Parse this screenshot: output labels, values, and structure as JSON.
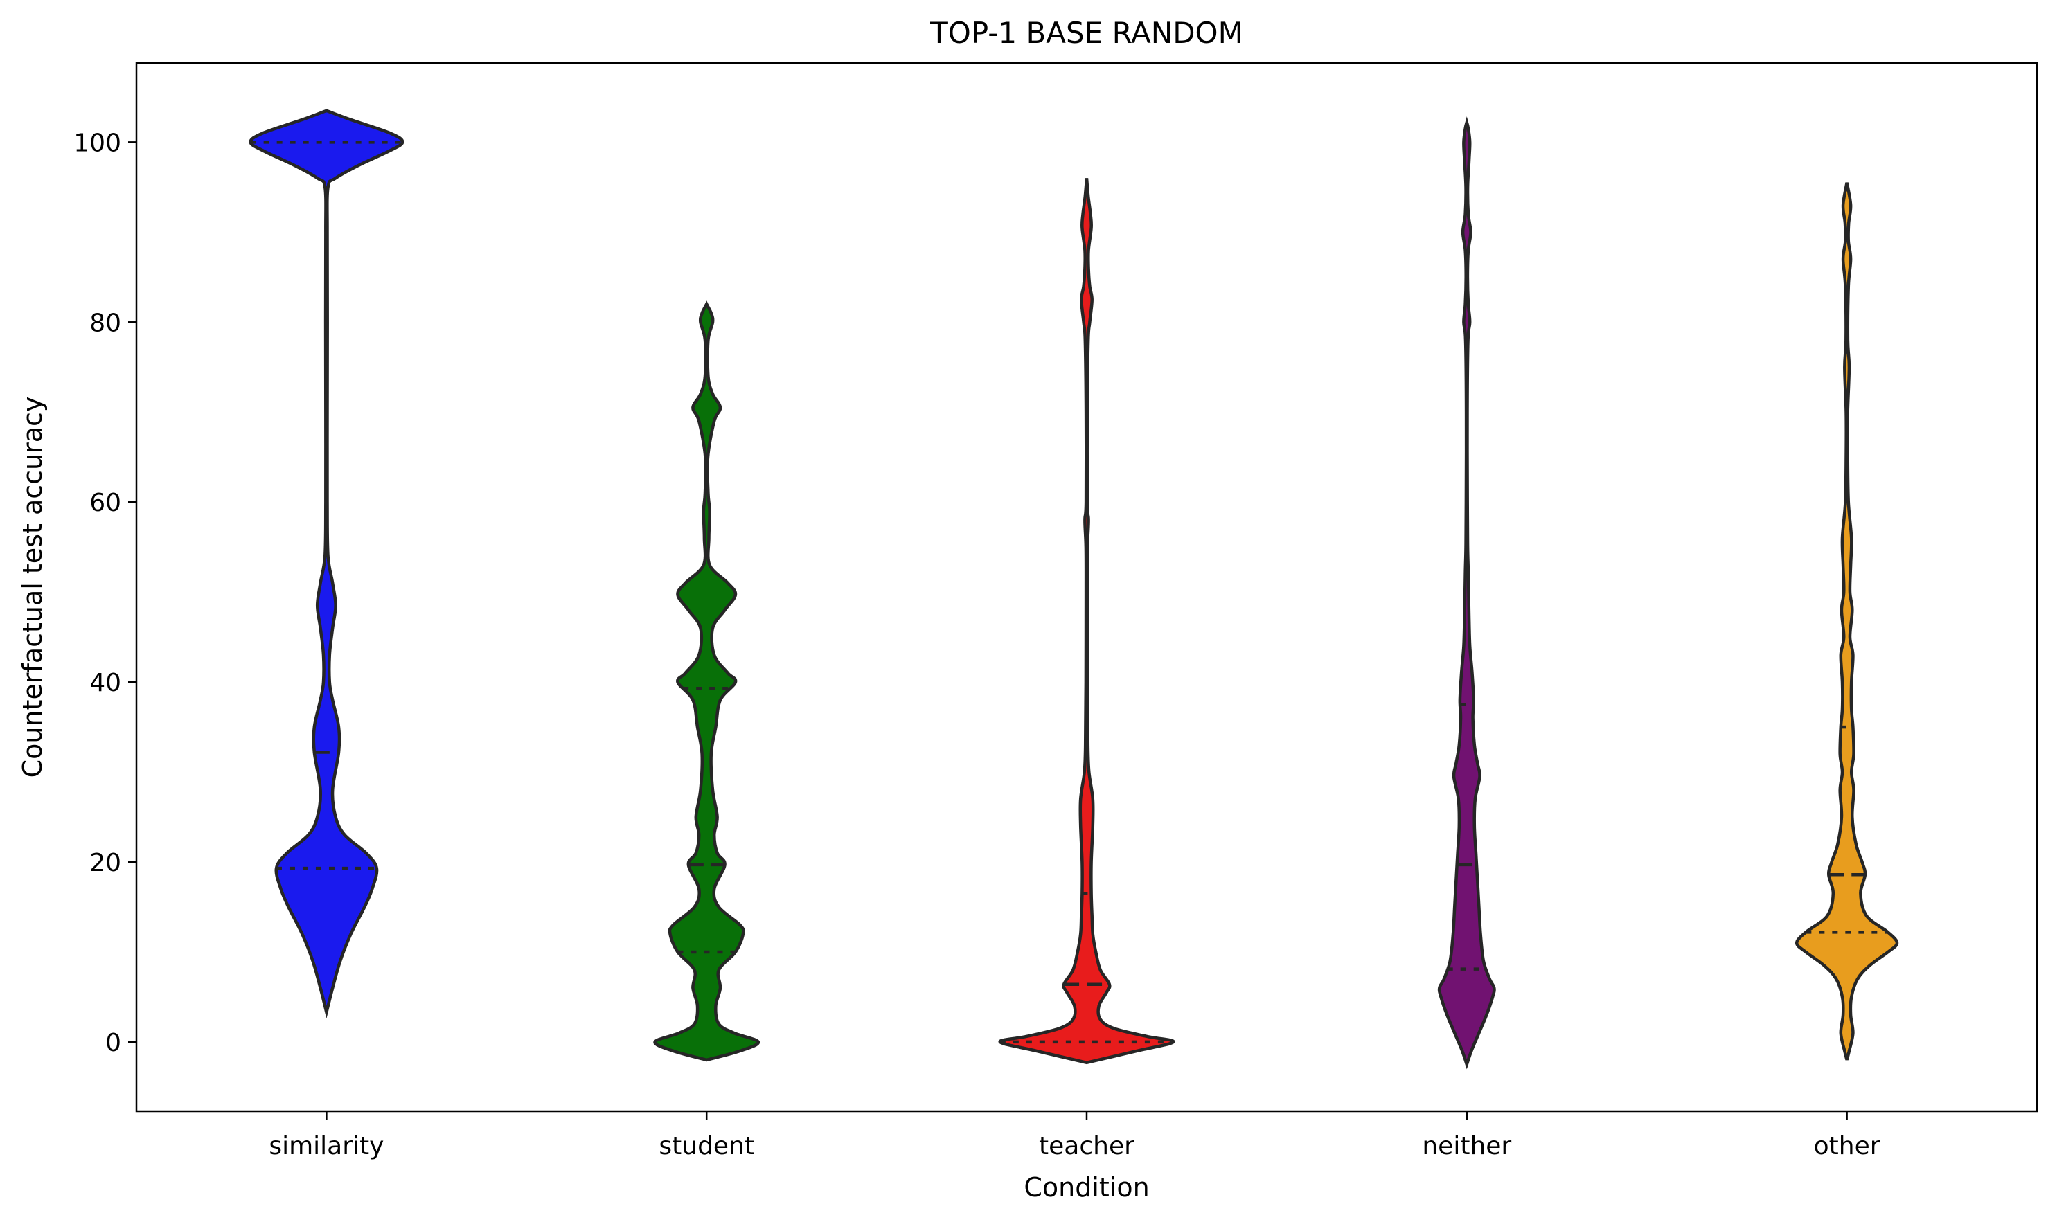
{
  "chart_data": {
    "type": "violin",
    "title": "TOP-1 BASE RANDOM",
    "xlabel": "Condition",
    "ylabel": "Counterfactual test accuracy",
    "ylim": [
      -7.7,
      108.8
    ],
    "yticks": [
      0,
      20,
      40,
      60,
      80,
      100
    ],
    "grid": false,
    "categories": [
      {
        "name": "similarity",
        "color": "#1a1aee",
        "range": [
          3.3,
          103.5
        ],
        "quartiles": [
          19.3,
          32.2,
          100.0
        ],
        "profile": [
          [
            3.3,
            0
          ],
          [
            6,
            0.04
          ],
          [
            9,
            0.09
          ],
          [
            12,
            0.16
          ],
          [
            15,
            0.25
          ],
          [
            17,
            0.3
          ],
          [
            19.3,
            0.33
          ],
          [
            21,
            0.26
          ],
          [
            23,
            0.12
          ],
          [
            25,
            0.06
          ],
          [
            28,
            0.04
          ],
          [
            32.2,
            0.08
          ],
          [
            35,
            0.08
          ],
          [
            38,
            0.04
          ],
          [
            40,
            0.02
          ],
          [
            43,
            0.02
          ],
          [
            46,
            0.04
          ],
          [
            48.5,
            0.06
          ],
          [
            51,
            0.04
          ],
          [
            54,
            0.01
          ],
          [
            60,
            0.005
          ],
          [
            70,
            0.005
          ],
          [
            80,
            0.006
          ],
          [
            90,
            0.005
          ],
          [
            95,
            0.01
          ],
          [
            96,
            0.06
          ],
          [
            97.5,
            0.22
          ],
          [
            99,
            0.41
          ],
          [
            100,
            0.5
          ],
          [
            101,
            0.42
          ],
          [
            102.5,
            0.16
          ],
          [
            103.5,
            0
          ]
        ]
      },
      {
        "name": "student",
        "color": "#087008",
        "range": [
          -2.0,
          82.0
        ],
        "quartiles": [
          10.0,
          19.7,
          39.3
        ],
        "profile": [
          [
            -2,
            0
          ],
          [
            -1,
            0.22
          ],
          [
            0,
            0.34
          ],
          [
            1,
            0.18
          ],
          [
            2,
            0.08
          ],
          [
            4,
            0.06
          ],
          [
            6,
            0.09
          ],
          [
            8,
            0.08
          ],
          [
            10,
            0.19
          ],
          [
            12,
            0.24
          ],
          [
            13,
            0.22
          ],
          [
            15,
            0.08
          ],
          [
            17,
            0.05
          ],
          [
            19.7,
            0.12
          ],
          [
            21,
            0.07
          ],
          [
            23,
            0.05
          ],
          [
            25,
            0.07
          ],
          [
            28,
            0.04
          ],
          [
            32,
            0.03
          ],
          [
            35,
            0.06
          ],
          [
            38,
            0.09
          ],
          [
            40,
            0.19
          ],
          [
            41,
            0.14
          ],
          [
            43,
            0.05
          ],
          [
            46,
            0.04
          ],
          [
            48,
            0.12
          ],
          [
            49.7,
            0.19
          ],
          [
            51,
            0.14
          ],
          [
            53,
            0.02
          ],
          [
            56,
            0.015
          ],
          [
            59,
            0.02
          ],
          [
            61,
            0.01
          ],
          [
            65,
            0.008
          ],
          [
            69,
            0.05
          ],
          [
            70.5,
            0.09
          ],
          [
            72,
            0.04
          ],
          [
            74,
            0.01
          ],
          [
            78,
            0.01
          ],
          [
            80,
            0.04
          ],
          [
            81,
            0.03
          ],
          [
            82,
            0
          ]
        ]
      },
      {
        "name": "teacher",
        "color": "#e81c1c",
        "range": [
          -2.3,
          96.0
        ],
        "quartiles": [
          0.0,
          6.4,
          16.5
        ],
        "profile": [
          [
            -2.3,
            0
          ],
          [
            -1,
            0.33
          ],
          [
            0,
            0.57
          ],
          [
            0.6,
            0.4
          ],
          [
            1.5,
            0.18
          ],
          [
            2.5,
            0.09
          ],
          [
            4,
            0.08
          ],
          [
            5.5,
            0.13
          ],
          [
            6.4,
            0.15
          ],
          [
            8,
            0.09
          ],
          [
            10,
            0.06
          ],
          [
            12,
            0.04
          ],
          [
            14,
            0.035
          ],
          [
            16.5,
            0.03
          ],
          [
            20,
            0.03
          ],
          [
            24,
            0.04
          ],
          [
            27,
            0.04
          ],
          [
            30,
            0.015
          ],
          [
            33,
            0.008
          ],
          [
            40,
            0.005
          ],
          [
            50,
            0.004
          ],
          [
            55,
            0.005
          ],
          [
            58,
            0.012
          ],
          [
            60,
            0.004
          ],
          [
            70,
            0.004
          ],
          [
            78,
            0.01
          ],
          [
            80,
            0.02
          ],
          [
            82.5,
            0.035
          ],
          [
            84,
            0.02
          ],
          [
            86,
            0.012
          ],
          [
            88,
            0.012
          ],
          [
            90.5,
            0.03
          ],
          [
            92,
            0.025
          ],
          [
            94,
            0.01
          ],
          [
            96,
            0
          ]
        ]
      },
      {
        "name": "neither",
        "color": "#711271",
        "range": [
          -2.5,
          102.2
        ],
        "quartiles": [
          8.1,
          19.7,
          37.5
        ],
        "profile": [
          [
            -2.5,
            0
          ],
          [
            -1,
            0.03
          ],
          [
            1,
            0.08
          ],
          [
            3,
            0.13
          ],
          [
            5,
            0.17
          ],
          [
            6,
            0.18
          ],
          [
            7,
            0.15
          ],
          [
            9,
            0.11
          ],
          [
            12,
            0.09
          ],
          [
            15,
            0.08
          ],
          [
            18,
            0.07
          ],
          [
            21,
            0.06
          ],
          [
            24,
            0.05
          ],
          [
            27,
            0.055
          ],
          [
            29.5,
            0.085
          ],
          [
            31,
            0.07
          ],
          [
            33,
            0.05
          ],
          [
            36,
            0.04
          ],
          [
            38,
            0.045
          ],
          [
            41,
            0.035
          ],
          [
            44,
            0.02
          ],
          [
            47,
            0.015
          ],
          [
            52,
            0.01
          ],
          [
            55,
            0.006
          ],
          [
            60,
            0.004
          ],
          [
            70,
            0.003
          ],
          [
            78,
            0.008
          ],
          [
            80,
            0.02
          ],
          [
            82,
            0.01
          ],
          [
            85,
            0.005
          ],
          [
            88,
            0.01
          ],
          [
            90,
            0.026
          ],
          [
            92,
            0.01
          ],
          [
            95,
            0.006
          ],
          [
            98,
            0.015
          ],
          [
            100,
            0.02
          ],
          [
            101.5,
            0.01
          ],
          [
            102.2,
            0
          ]
        ]
      },
      {
        "name": "other",
        "color": "#e89d1e",
        "range": [
          -2.0,
          95.5
        ],
        "quartiles": [
          12.2,
          18.6,
          35.0
        ],
        "profile": [
          [
            -2,
            0
          ],
          [
            -1,
            0.015
          ],
          [
            1,
            0.04
          ],
          [
            3,
            0.025
          ],
          [
            5,
            0.03
          ],
          [
            7,
            0.07
          ],
          [
            8.5,
            0.15
          ],
          [
            10,
            0.27
          ],
          [
            11,
            0.33
          ],
          [
            12.2,
            0.27
          ],
          [
            14,
            0.13
          ],
          [
            16.5,
            0.09
          ],
          [
            18.6,
            0.12
          ],
          [
            20,
            0.1
          ],
          [
            22,
            0.06
          ],
          [
            25,
            0.035
          ],
          [
            28,
            0.045
          ],
          [
            30,
            0.03
          ],
          [
            32,
            0.045
          ],
          [
            35,
            0.04
          ],
          [
            37,
            0.03
          ],
          [
            40,
            0.03
          ],
          [
            43,
            0.04
          ],
          [
            45,
            0.02
          ],
          [
            48,
            0.035
          ],
          [
            50,
            0.02
          ],
          [
            53,
            0.025
          ],
          [
            56,
            0.03
          ],
          [
            60,
            0.01
          ],
          [
            65,
            0.005
          ],
          [
            70,
            0.005
          ],
          [
            75,
            0.015
          ],
          [
            78,
            0.006
          ],
          [
            84,
            0.01
          ],
          [
            87,
            0.025
          ],
          [
            89,
            0.01
          ],
          [
            91,
            0.012
          ],
          [
            93,
            0.025
          ],
          [
            95.5,
            0
          ]
        ]
      }
    ]
  }
}
